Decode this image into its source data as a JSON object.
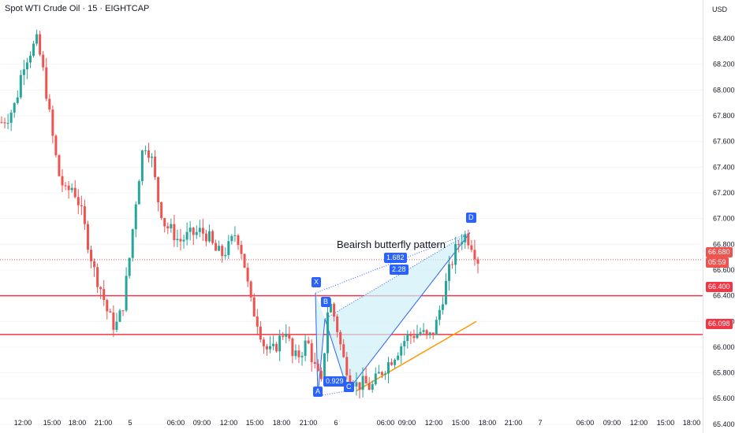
{
  "header": {
    "title": "Spot WTI Crude Oil · 15 · EIGHTCAP",
    "currency": "USD"
  },
  "annotation": {
    "text": "Beairsh butterfly pattern"
  },
  "pattern_labels": {
    "X": "X",
    "A": "A",
    "B": "B",
    "C": "C",
    "D": "D",
    "ratio_b": "1.682",
    "ratio_d": "2.28",
    "ratio_c": "0.929"
  },
  "price_tags": {
    "last": "66.680",
    "countdown": "05:59",
    "res1": "66.400",
    "res2": "66.098"
  },
  "colors": {
    "up": "#26a69a",
    "down": "#ef5350",
    "level": "#f23645",
    "pattern": "#2962ff",
    "fill": "#cdeff8",
    "trend": "#ff9800"
  },
  "chart_data": {
    "type": "candlestick",
    "title": "Spot WTI Crude Oil · 15 · EIGHTCAP",
    "ylim": [
      65.4,
      68.5
    ],
    "y_ticks": [
      "68.400",
      "68.200",
      "68.000",
      "67.800",
      "67.600",
      "67.400",
      "67.200",
      "67.000",
      "66.800",
      "66.600",
      "66.400",
      "66.200",
      "66.000",
      "65.800",
      "65.600",
      "65.400"
    ],
    "x_ticks": [
      "12:00",
      "15:00",
      "18:00",
      "21:00",
      "5",
      "06:00",
      "09:00",
      "12:00",
      "15:00",
      "18:00",
      "21:00",
      "6",
      "06:00",
      "09:00",
      "12:00",
      "15:00",
      "18:00",
      "21:00",
      "7",
      "06:00",
      "09:00",
      "12:00",
      "15:00",
      "18:00"
    ],
    "horizontal_levels": [
      66.4,
      66.098
    ],
    "last_price": 66.68,
    "path": [
      67.75,
      67.8,
      67.9,
      68.2,
      68.3,
      68.38,
      68.1,
      67.7,
      67.35,
      67.2,
      67.25,
      67.1,
      66.85,
      66.6,
      66.45,
      66.25,
      66.15,
      66.3,
      66.7,
      67.2,
      67.6,
      67.5,
      67.15,
      66.95,
      66.9,
      66.82,
      66.86,
      66.88,
      66.9,
      66.87,
      66.75,
      66.72,
      66.78,
      66.9,
      66.7,
      66.35,
      66.2,
      66.0,
      65.95,
      66.05,
      66.15,
      65.9,
      65.95,
      66.05,
      65.85,
      65.7,
      66.38,
      66.2,
      65.92,
      65.78,
      65.7,
      65.72,
      65.68,
      65.78,
      65.85,
      65.92,
      66.0,
      66.08,
      66.1,
      66.12,
      66.06,
      66.15,
      66.38,
      66.6,
      66.78,
      66.88,
      66.82,
      66.68
    ],
    "harmonic_pattern": {
      "name": "Bearish butterfly",
      "X": 66.42,
      "A": 65.62,
      "B": 66.22,
      "C": 65.66,
      "D": 66.89,
      "ratios": [
        1.682,
        2.28,
        0.929
      ]
    },
    "trendline": {
      "from": 65.66,
      "to": 66.2
    }
  }
}
